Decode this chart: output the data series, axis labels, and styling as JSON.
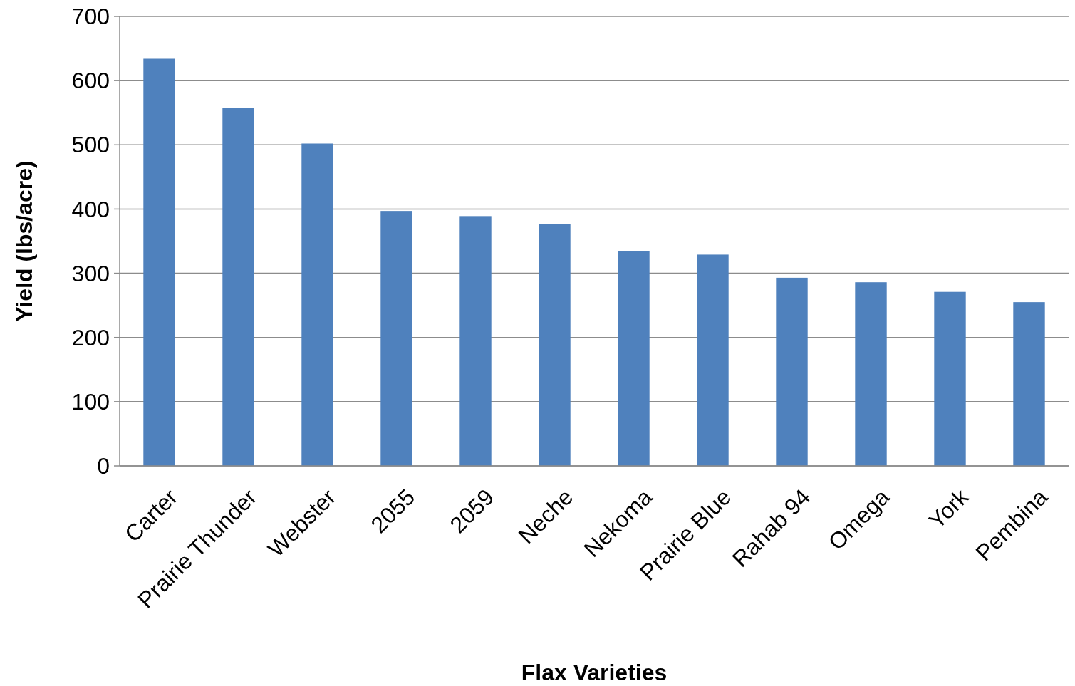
{
  "chart_data": {
    "type": "bar",
    "xlabel": "Flax Varieties",
    "ylabel": "Yield (lbs/acre)",
    "categories": [
      "Carter",
      "Prairie Thunder",
      "Webster",
      "2055",
      "2059",
      "Neche",
      "Nekoma",
      "Prairie Blue",
      "Rahab 94",
      "Omega",
      "York",
      "Pembina"
    ],
    "values": [
      634,
      557,
      502,
      397,
      389,
      377,
      335,
      329,
      293,
      286,
      271,
      255
    ],
    "color": "#4f81bd",
    "ylim": [
      0,
      700
    ],
    "yticks": [
      0,
      100,
      200,
      300,
      400,
      500,
      600,
      700
    ],
    "grid": "y"
  }
}
